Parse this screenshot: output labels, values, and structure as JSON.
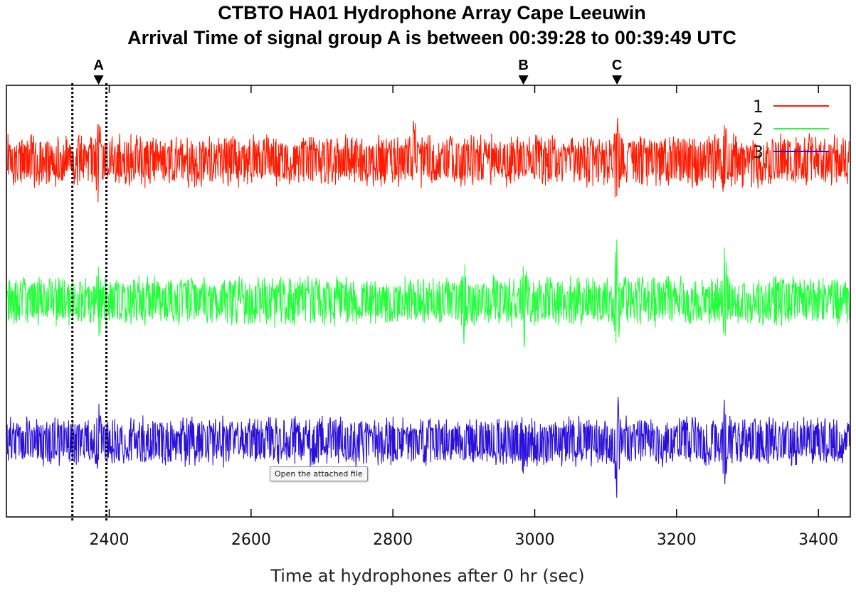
{
  "chart_data": {
    "type": "line",
    "title": "CTBTO HA01 Hydrophone Array Cape Leeuwin",
    "subtitle": "Arrival Time of signal group A is between 00:39:28 to 00:39:49 UTC",
    "xlabel": "Time at hydrophones after 0 hr (sec)",
    "ylabel": "",
    "xlim": [
      2255,
      3445
    ],
    "x_ticks": [
      2400,
      2600,
      2800,
      3000,
      3200,
      3400
    ],
    "y_ticks_labeled": false,
    "grid": false,
    "legend_position": "top-right",
    "series": [
      {
        "name": "1",
        "color": "#ff1a00",
        "baseline_level": 0.825,
        "noise_amplitude": 0.065,
        "peaks": [
          [
            2385,
            0.09
          ],
          [
            2830,
            0.085
          ],
          [
            3116,
            0.13
          ],
          [
            3268,
            0.085
          ]
        ]
      },
      {
        "name": "2",
        "color": "#22ff3a",
        "baseline_level": 0.5,
        "noise_amplitude": 0.062,
        "peaks": [
          [
            2385,
            0.085
          ],
          [
            2900,
            0.09
          ],
          [
            2985,
            0.095
          ],
          [
            3116,
            0.14
          ],
          [
            3268,
            0.12
          ]
        ]
      },
      {
        "name": "3",
        "color": "#2a10d8",
        "baseline_level": 0.175,
        "noise_amplitude": 0.062,
        "peaks": [
          [
            2385,
            0.08
          ],
          [
            2985,
            0.075
          ],
          [
            3116,
            0.12
          ],
          [
            3268,
            0.09
          ]
        ]
      }
    ],
    "markers": [
      {
        "label": "A",
        "x": 2385
      },
      {
        "label": "B",
        "x": 2984
      },
      {
        "label": "C",
        "x": 3116
      }
    ],
    "window_lines": [
      2348,
      2396
    ]
  },
  "tooltip": {
    "text": "Open the attached file"
  }
}
